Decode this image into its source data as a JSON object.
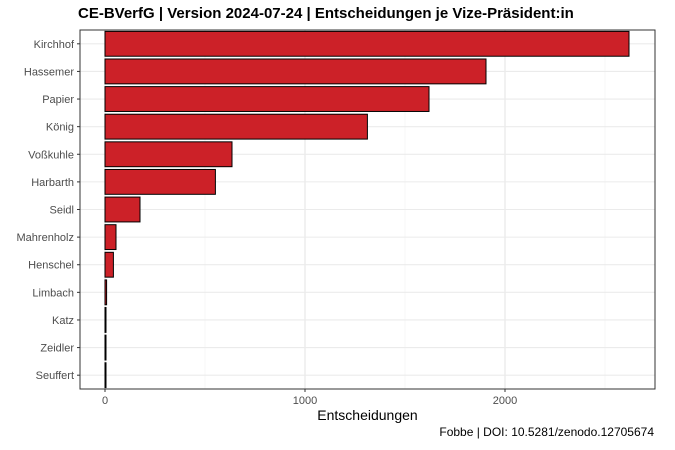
{
  "chart_data": {
    "type": "bar",
    "orientation": "horizontal",
    "title": "CE-BVerfG | Version 2024-07-24 | Entscheidungen je Vize-Präsident:in",
    "xlabel": "Entscheidungen",
    "ylabel": "",
    "categories": [
      "Kirchhof",
      "Hassemer",
      "Papier",
      "König",
      "Voßkuhle",
      "Harbarth",
      "Seidl",
      "Mahrenholz",
      "Henschel",
      "Limbach",
      "Katz",
      "Zeidler",
      "Seuffert"
    ],
    "values": [
      2620,
      1905,
      1620,
      1312,
      635,
      552,
      175,
      55,
      42,
      8,
      5,
      3,
      2
    ],
    "xlim": [
      -125,
      2750
    ],
    "xticks": [
      0,
      1000,
      2000
    ],
    "grid": true,
    "legend": "none",
    "bar_color": "#cc2128",
    "bar_outline": "#000000",
    "caption": "Fobbe | DOI: 10.5281/zenodo.12705674"
  }
}
